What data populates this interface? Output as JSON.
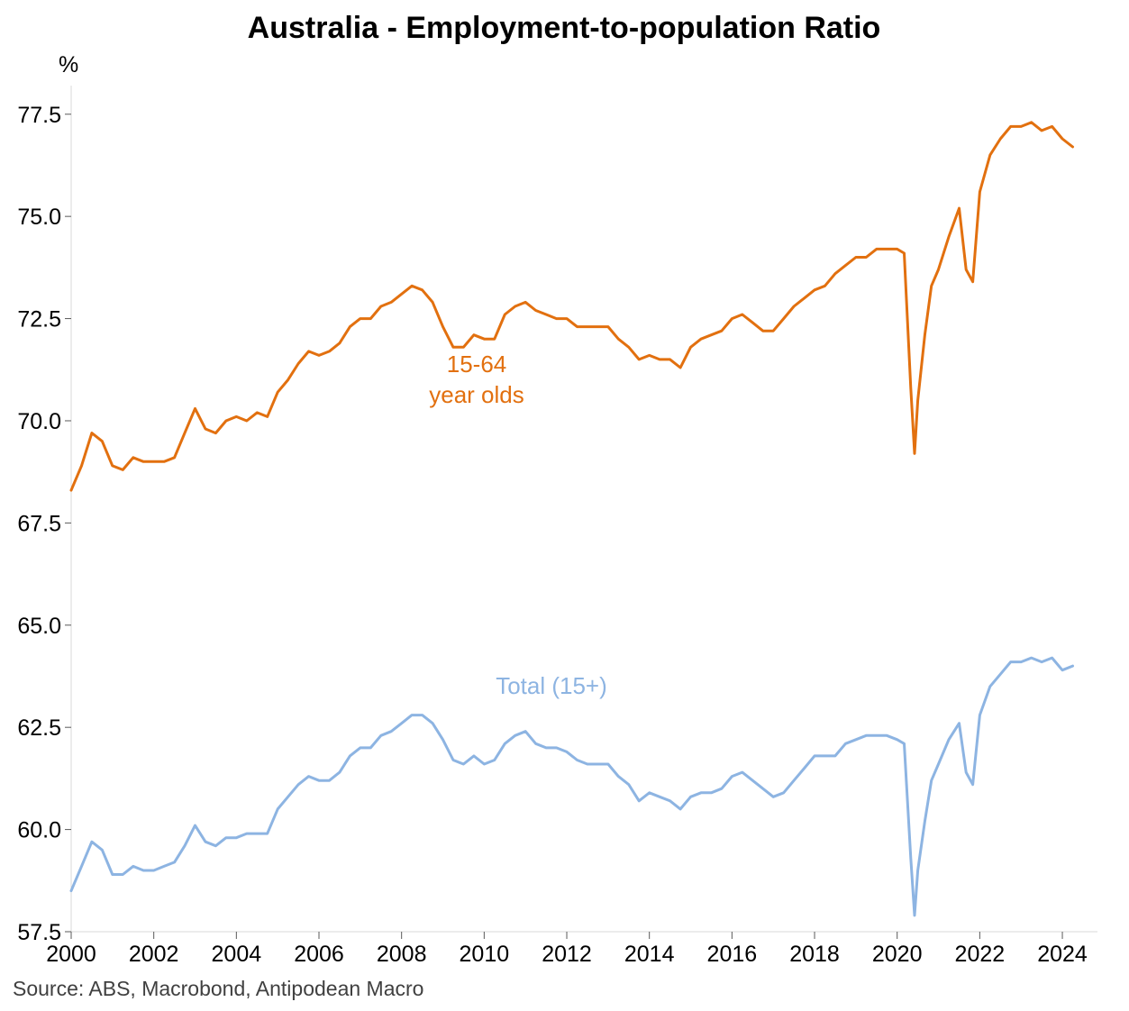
{
  "chart_data": {
    "type": "line",
    "title": "Australia - Employment-to-population Ratio",
    "ylabel": "%",
    "xlabel": "",
    "ylim": [
      57.5,
      78.2
    ],
    "xlim": [
      2000.0,
      2024.85
    ],
    "y_ticks": [
      "57.5",
      "60.0",
      "62.5",
      "65.0",
      "67.5",
      "70.0",
      "72.5",
      "75.0",
      "77.5"
    ],
    "x_ticks": [
      "2000",
      "2002",
      "2004",
      "2006",
      "2008",
      "2010",
      "2012",
      "2014",
      "2016",
      "2018",
      "2020",
      "2022",
      "2024"
    ],
    "source": "Source: ABS, Macrobond, Antipodean Macro",
    "series": [
      {
        "name": "15-64 year olds",
        "label_lines": [
          "15-64",
          "year olds"
        ],
        "color": "#E2700F",
        "x": [
          2000.0,
          2000.25,
          2000.5,
          2000.75,
          2001.0,
          2001.25,
          2001.5,
          2001.75,
          2002.0,
          2002.25,
          2002.5,
          2002.75,
          2003.0,
          2003.25,
          2003.5,
          2003.75,
          2004.0,
          2004.25,
          2004.5,
          2004.75,
          2005.0,
          2005.25,
          2005.5,
          2005.75,
          2006.0,
          2006.25,
          2006.5,
          2006.75,
          2007.0,
          2007.25,
          2007.5,
          2007.75,
          2008.0,
          2008.25,
          2008.5,
          2008.75,
          2009.0,
          2009.25,
          2009.5,
          2009.75,
          2010.0,
          2010.25,
          2010.5,
          2010.75,
          2011.0,
          2011.25,
          2011.5,
          2011.75,
          2012.0,
          2012.25,
          2012.5,
          2012.75,
          2013.0,
          2013.25,
          2013.5,
          2013.75,
          2014.0,
          2014.25,
          2014.5,
          2014.75,
          2015.0,
          2015.25,
          2015.5,
          2015.75,
          2016.0,
          2016.25,
          2016.5,
          2016.75,
          2017.0,
          2017.25,
          2017.5,
          2017.75,
          2018.0,
          2018.25,
          2018.5,
          2018.75,
          2019.0,
          2019.25,
          2019.5,
          2019.75,
          2020.0,
          2020.17,
          2020.33,
          2020.42,
          2020.5,
          2020.67,
          2020.83,
          2021.0,
          2021.25,
          2021.5,
          2021.67,
          2021.83,
          2022.0,
          2022.25,
          2022.5,
          2022.75,
          2023.0,
          2023.25,
          2023.5,
          2023.75,
          2024.0,
          2024.25
        ],
        "values": [
          68.3,
          68.9,
          69.7,
          69.5,
          68.9,
          68.8,
          69.1,
          69.0,
          69.0,
          69.0,
          69.1,
          69.7,
          70.3,
          69.8,
          69.7,
          70.0,
          70.1,
          70.0,
          70.2,
          70.1,
          70.7,
          71.0,
          71.4,
          71.7,
          71.6,
          71.7,
          71.9,
          72.3,
          72.5,
          72.5,
          72.8,
          72.9,
          73.1,
          73.3,
          73.2,
          72.9,
          72.3,
          71.8,
          71.8,
          72.1,
          72.0,
          72.0,
          72.6,
          72.8,
          72.9,
          72.7,
          72.6,
          72.5,
          72.5,
          72.3,
          72.3,
          72.3,
          72.3,
          72.0,
          71.8,
          71.5,
          71.6,
          71.5,
          71.5,
          71.3,
          71.8,
          72.0,
          72.1,
          72.2,
          72.5,
          72.6,
          72.4,
          72.2,
          72.2,
          72.5,
          72.8,
          73.0,
          73.2,
          73.3,
          73.6,
          73.8,
          74.0,
          74.0,
          74.2,
          74.2,
          74.2,
          74.1,
          70.8,
          69.2,
          70.5,
          72.1,
          73.3,
          73.7,
          74.5,
          75.2,
          73.7,
          73.4,
          75.6,
          76.5,
          76.9,
          77.2,
          77.2,
          77.3,
          77.1,
          77.2,
          76.9,
          76.7
        ]
      },
      {
        "name": "Total (15+)",
        "label_lines": [
          "Total (15+)"
        ],
        "color": "#8DB4E2",
        "x": [
          2000.0,
          2000.25,
          2000.5,
          2000.75,
          2001.0,
          2001.25,
          2001.5,
          2001.75,
          2002.0,
          2002.25,
          2002.5,
          2002.75,
          2003.0,
          2003.25,
          2003.5,
          2003.75,
          2004.0,
          2004.25,
          2004.5,
          2004.75,
          2005.0,
          2005.25,
          2005.5,
          2005.75,
          2006.0,
          2006.25,
          2006.5,
          2006.75,
          2007.0,
          2007.25,
          2007.5,
          2007.75,
          2008.0,
          2008.25,
          2008.5,
          2008.75,
          2009.0,
          2009.25,
          2009.5,
          2009.75,
          2010.0,
          2010.25,
          2010.5,
          2010.75,
          2011.0,
          2011.25,
          2011.5,
          2011.75,
          2012.0,
          2012.25,
          2012.5,
          2012.75,
          2013.0,
          2013.25,
          2013.5,
          2013.75,
          2014.0,
          2014.25,
          2014.5,
          2014.75,
          2015.0,
          2015.25,
          2015.5,
          2015.75,
          2016.0,
          2016.25,
          2016.5,
          2016.75,
          2017.0,
          2017.25,
          2017.5,
          2017.75,
          2018.0,
          2018.25,
          2018.5,
          2018.75,
          2019.0,
          2019.25,
          2019.5,
          2019.75,
          2020.0,
          2020.17,
          2020.33,
          2020.42,
          2020.5,
          2020.67,
          2020.83,
          2021.0,
          2021.25,
          2021.5,
          2021.67,
          2021.83,
          2022.0,
          2022.25,
          2022.5,
          2022.75,
          2023.0,
          2023.25,
          2023.5,
          2023.75,
          2024.0,
          2024.25
        ],
        "values": [
          58.5,
          59.1,
          59.7,
          59.5,
          58.9,
          58.9,
          59.1,
          59.0,
          59.0,
          59.1,
          59.2,
          59.6,
          60.1,
          59.7,
          59.6,
          59.8,
          59.8,
          59.9,
          59.9,
          59.9,
          60.5,
          60.8,
          61.1,
          61.3,
          61.2,
          61.2,
          61.4,
          61.8,
          62.0,
          62.0,
          62.3,
          62.4,
          62.6,
          62.8,
          62.8,
          62.6,
          62.2,
          61.7,
          61.6,
          61.8,
          61.6,
          61.7,
          62.1,
          62.3,
          62.4,
          62.1,
          62.0,
          62.0,
          61.9,
          61.7,
          61.6,
          61.6,
          61.6,
          61.3,
          61.1,
          60.7,
          60.9,
          60.8,
          60.7,
          60.5,
          60.8,
          60.9,
          60.9,
          61.0,
          61.3,
          61.4,
          61.2,
          61.0,
          60.8,
          60.9,
          61.2,
          61.5,
          61.8,
          61.8,
          61.8,
          62.1,
          62.2,
          62.3,
          62.3,
          62.3,
          62.2,
          62.1,
          59.3,
          57.9,
          59.0,
          60.2,
          61.2,
          61.6,
          62.2,
          62.6,
          61.4,
          61.1,
          62.8,
          63.5,
          63.8,
          64.1,
          64.1,
          64.2,
          64.1,
          64.2,
          63.9,
          64.0
        ]
      }
    ]
  }
}
